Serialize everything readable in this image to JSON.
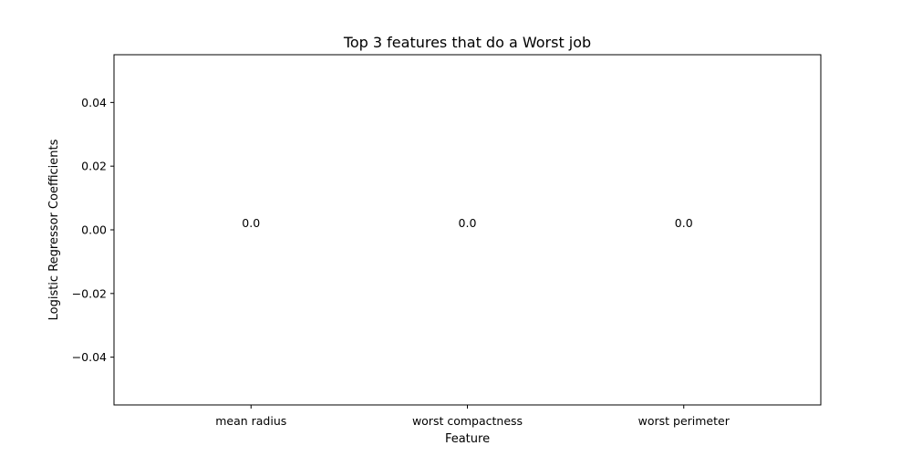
{
  "chart_data": {
    "type": "bar",
    "title": "Top 3 features that do a Worst job",
    "xlabel": "Feature",
    "ylabel": "Logistic Regressor Coefficients",
    "categories": [
      "mean radius",
      "worst compactness",
      "worst perimeter"
    ],
    "values": [
      0.0,
      0.0,
      0.0
    ],
    "data_labels": [
      "0.0",
      "0.0",
      "0.0"
    ],
    "ylim": [
      -0.055,
      0.055
    ],
    "yticks": [
      -0.04,
      -0.02,
      0.0,
      0.02,
      0.04
    ],
    "ytick_labels": [
      "−0.04",
      "−0.02",
      "0.00",
      "0.02",
      "0.04"
    ],
    "grid": false,
    "bar_color": "#1f77b4"
  }
}
